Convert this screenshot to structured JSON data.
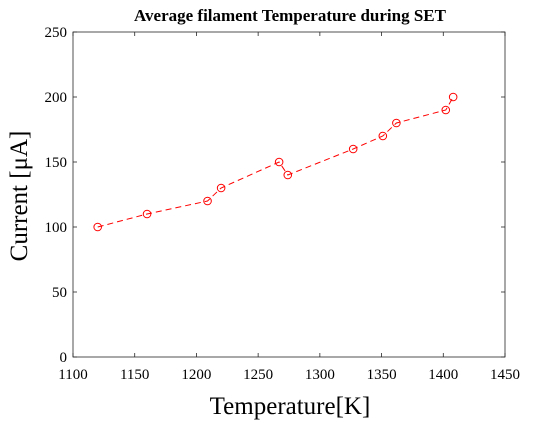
{
  "chart_data": {
    "type": "line",
    "title": "Average filament Temperature during SET",
    "xlabel": "Temperature[K]",
    "ylabel": "Current [μA]",
    "xlim": [
      1100,
      1450
    ],
    "ylim": [
      0,
      250
    ],
    "xticks": [
      1100,
      1150,
      1200,
      1250,
      1300,
      1350,
      1400,
      1450
    ],
    "yticks": [
      0,
      50,
      100,
      150,
      200,
      250
    ],
    "grid": false,
    "series": [
      {
        "line_style": "dashed",
        "marker": "circle-open",
        "color": "#ff0000",
        "x": [
          1120,
          1160,
          1209,
          1220,
          1267,
          1274,
          1327,
          1351,
          1362,
          1402,
          1408
        ],
        "y": [
          100,
          110,
          120,
          130,
          150,
          140,
          160,
          170,
          180,
          190,
          200
        ]
      }
    ]
  }
}
